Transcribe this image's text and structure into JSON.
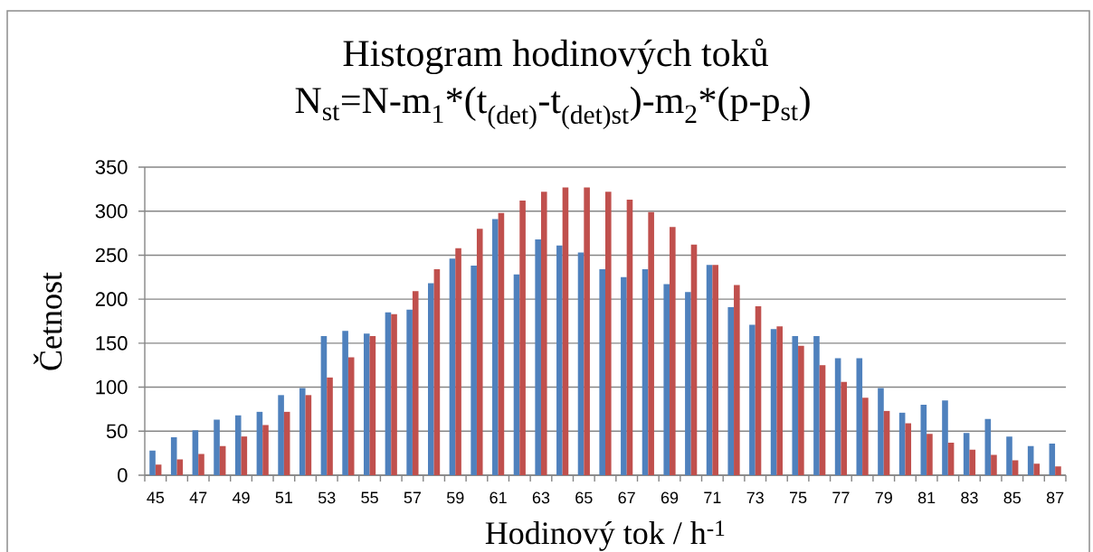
{
  "chart_data": {
    "type": "bar",
    "title": "Histogram hodinových toků",
    "subtitle": "N$_{st}$=N-m$_{1}$*(t$_{(det)}$-t$_{(det)st}$)",
    "annotations": [
      "-m$_{2}$*(p-p$_{st}$)"
    ],
    "xlabel": "Hodinový tok / h$^{-1}$",
    "ylabel": "Četnost",
    "categories": [
      "45",
      null,
      "47",
      null,
      "49",
      null,
      "51",
      null,
      "53",
      null,
      "55",
      null,
      "57",
      null,
      "59",
      null,
      "61",
      null,
      "63",
      null,
      "65",
      null,
      "67",
      null,
      "69",
      null,
      "71",
      null,
      "73",
      null,
      "75",
      null,
      "77",
      null,
      "79",
      null,
      "81",
      null,
      "83",
      null,
      "85",
      null,
      "87"
    ],
    "series": [
      {
        "color": "#4f81bd",
        "values": [
          28,
          43,
          51,
          63,
          68,
          72,
          91,
          99,
          158,
          164,
          161,
          185,
          188,
          218,
          246,
          238,
          291,
          228,
          268,
          261,
          253,
          234,
          225,
          234,
          217,
          208,
          239,
          191,
          171,
          166,
          158,
          158,
          133,
          133,
          99,
          71,
          80,
          85,
          48,
          64,
          44,
          33,
          36
        ]
      },
      {
        "color": "#c0504d",
        "values": [
          12,
          18,
          24,
          33,
          44,
          57,
          72,
          91,
          111,
          134,
          158,
          183,
          209,
          234,
          258,
          280,
          298,
          312,
          322,
          327,
          327,
          322,
          313,
          299,
          282,
          262,
          239,
          216,
          192,
          169,
          147,
          125,
          106,
          88,
          73,
          59,
          47,
          37,
          29,
          23,
          17,
          13,
          10
        ]
      }
    ],
    "ylim": [
      0,
      350
    ],
    "yticks": [
      0,
      50,
      100,
      150,
      200,
      250,
      300,
      350
    ],
    "grid": "y"
  }
}
